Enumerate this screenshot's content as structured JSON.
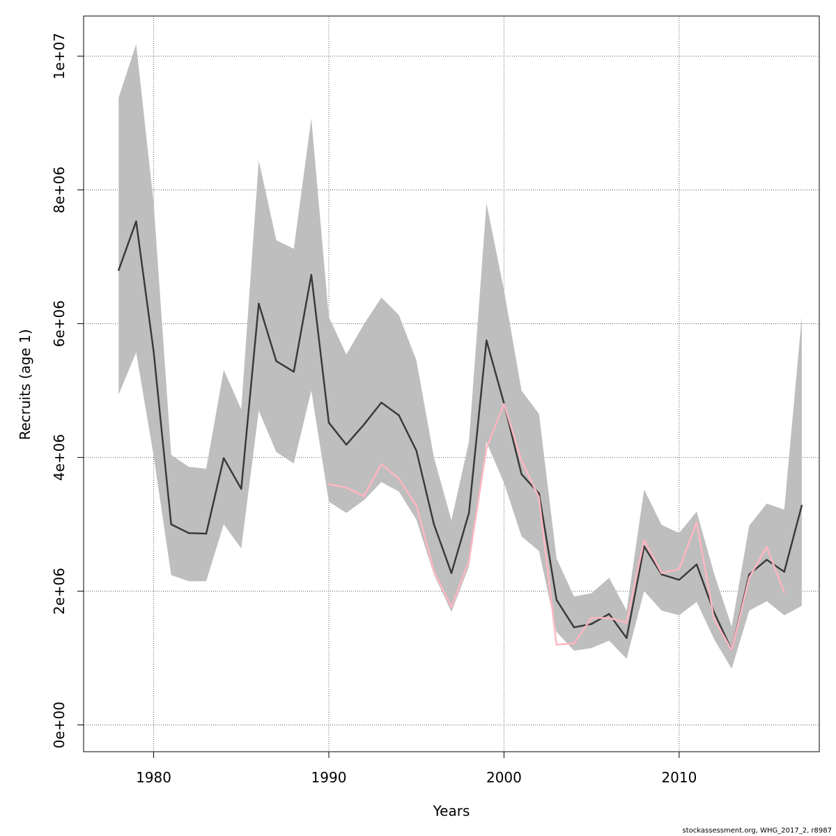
{
  "chart_data": {
    "type": "line",
    "title": "",
    "xlabel": "Years",
    "ylabel": "Recruits (age 1)",
    "xlim": [
      1976,
      2018
    ],
    "ylim": [
      -400000,
      10600000
    ],
    "x_ticks": [
      1980,
      1990,
      2000,
      2010
    ],
    "x_tick_labels": [
      "1980",
      "1990",
      "2000",
      "2010"
    ],
    "y_ticks": [
      0,
      2000000,
      4000000,
      6000000,
      8000000,
      10000000
    ],
    "y_tick_labels": [
      "0e+00",
      "2e+06",
      "4e+06",
      "6e+06",
      "8e+06",
      "1e+07"
    ],
    "grid": true,
    "colors": {
      "band": "#bebebe",
      "estimate": "#3a3a3a",
      "retro": "#ffb6c1",
      "grid": "#555555"
    },
    "years": [
      1978,
      1979,
      1980,
      1981,
      1982,
      1983,
      1984,
      1985,
      1986,
      1987,
      1988,
      1989,
      1990,
      1991,
      1992,
      1993,
      1994,
      1995,
      1996,
      1997,
      1998,
      1999,
      2000,
      2001,
      2002,
      2003,
      2004,
      2005,
      2006,
      2007,
      2008,
      2009,
      2010,
      2011,
      2012,
      2013,
      2014,
      2015,
      2016,
      2017
    ],
    "series": [
      {
        "role": "estimate",
        "x": [
          1978,
          1979,
          1980,
          1981,
          1982,
          1983,
          1984,
          1985,
          1986,
          1987,
          1988,
          1989,
          1990,
          1991,
          1992,
          1993,
          1994,
          1995,
          1996,
          1997,
          1998,
          1999,
          2000,
          2001,
          2002,
          2003,
          2004,
          2005,
          2006,
          2007,
          2008,
          2009,
          2010,
          2011,
          2012,
          2013,
          2014,
          2015,
          2016,
          2017
        ],
        "values": [
          6800000,
          7530000,
          5580000,
          3000000,
          2870000,
          2860000,
          3990000,
          3530000,
          6300000,
          5440000,
          5280000,
          6730000,
          4520000,
          4190000,
          4490000,
          4820000,
          4630000,
          4100000,
          3000000,
          2270000,
          3170000,
          5750000,
          4810000,
          3750000,
          3460000,
          1870000,
          1460000,
          1510000,
          1660000,
          1300000,
          2670000,
          2250000,
          2170000,
          2400000,
          1680000,
          1120000,
          2250000,
          2470000,
          2290000,
          3280000
        ]
      },
      {
        "role": "retrospective",
        "x": [
          1990,
          1991,
          1992,
          1993,
          1994,
          1995,
          1996,
          1997,
          1998,
          1999,
          2000,
          2001,
          2002,
          2003,
          2004,
          2005,
          2006,
          2007,
          2008,
          2009,
          2010,
          2011,
          2012,
          2013,
          2014,
          2015,
          2016
        ],
        "values": [
          3600000,
          3550000,
          3420000,
          3900000,
          3680000,
          3280000,
          2300000,
          1760000,
          2450000,
          4140000,
          4800000,
          3950000,
          3400000,
          1200000,
          1220000,
          1600000,
          1600000,
          1530000,
          2760000,
          2270000,
          2330000,
          3030000,
          1580000,
          1120000,
          2200000,
          2660000,
          1980000
        ]
      }
    ],
    "band": {
      "upper": [
        9380000,
        10180000,
        7800000,
        4040000,
        3860000,
        3830000,
        5310000,
        4720000,
        8440000,
        7250000,
        7120000,
        9070000,
        6100000,
        5540000,
        5990000,
        6390000,
        6130000,
        5450000,
        4000000,
        3060000,
        4240000,
        7800000,
        6500000,
        5000000,
        4650000,
        2490000,
        1920000,
        1970000,
        2200000,
        1710000,
        3520000,
        2990000,
        2870000,
        3190000,
        2260000,
        1470000,
        2980000,
        3310000,
        3220000,
        6100000
      ],
      "lower": [
        4940000,
        5570000,
        4020000,
        2240000,
        2150000,
        2150000,
        3000000,
        2640000,
        4700000,
        4080000,
        3910000,
        5000000,
        3340000,
        3170000,
        3360000,
        3630000,
        3490000,
        3070000,
        2250000,
        1690000,
        2370000,
        4230000,
        3620000,
        2820000,
        2600000,
        1390000,
        1110000,
        1150000,
        1260000,
        990000,
        2000000,
        1710000,
        1640000,
        1840000,
        1280000,
        840000,
        1710000,
        1850000,
        1640000,
        1780000
      ]
    }
  },
  "footer": {
    "text": "stockassessment.org, WHG_2017_2, r8987"
  }
}
